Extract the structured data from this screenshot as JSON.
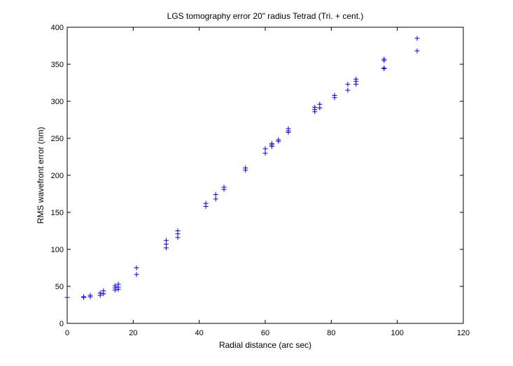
{
  "chart_data": {
    "type": "scatter",
    "title": "LGS tomography error 20\" radius Tetrad (Tri. + cent.)",
    "xlabel": "Radial distance (arc sec)",
    "ylabel": "RMS wavefront error (nm)",
    "xlim": [
      0,
      120
    ],
    "ylim": [
      0,
      400
    ],
    "xticks": [
      0,
      20,
      40,
      60,
      80,
      100,
      120
    ],
    "yticks": [
      0,
      50,
      100,
      150,
      200,
      250,
      300,
      350,
      400
    ],
    "grid": false,
    "marker": "+",
    "marker_color": "#0000ff",
    "points": [
      [
        0,
        35
      ],
      [
        5,
        35
      ],
      [
        5,
        36
      ],
      [
        7,
        36
      ],
      [
        7,
        38
      ],
      [
        10,
        38
      ],
      [
        10,
        41
      ],
      [
        11,
        40
      ],
      [
        11,
        44
      ],
      [
        14.5,
        45
      ],
      [
        14.5,
        48
      ],
      [
        14.5,
        51
      ],
      [
        15.5,
        46
      ],
      [
        15.5,
        49
      ],
      [
        15.5,
        53
      ],
      [
        21,
        66
      ],
      [
        21,
        75
      ],
      [
        30,
        102
      ],
      [
        30,
        107
      ],
      [
        30,
        112
      ],
      [
        33.5,
        116
      ],
      [
        33.5,
        121
      ],
      [
        33.5,
        125
      ],
      [
        42,
        158
      ],
      [
        42,
        162
      ],
      [
        45,
        168
      ],
      [
        45,
        174
      ],
      [
        47.5,
        181
      ],
      [
        47.5,
        184
      ],
      [
        54,
        207
      ],
      [
        54,
        210
      ],
      [
        60,
        230
      ],
      [
        60,
        236
      ],
      [
        62,
        239
      ],
      [
        62,
        241
      ],
      [
        62,
        243
      ],
      [
        64,
        246
      ],
      [
        64,
        248
      ],
      [
        67,
        258
      ],
      [
        67,
        260
      ],
      [
        67,
        263
      ],
      [
        75,
        286
      ],
      [
        75,
        289
      ],
      [
        75,
        292
      ],
      [
        76.5,
        291
      ],
      [
        76.5,
        296
      ],
      [
        81,
        305
      ],
      [
        81,
        308
      ],
      [
        85,
        315
      ],
      [
        85,
        323
      ],
      [
        87.5,
        323
      ],
      [
        87.5,
        327
      ],
      [
        87.5,
        330
      ],
      [
        96,
        344
      ],
      [
        96,
        345
      ],
      [
        96,
        355
      ],
      [
        96,
        357
      ],
      [
        106,
        368
      ],
      [
        106,
        385
      ]
    ]
  }
}
